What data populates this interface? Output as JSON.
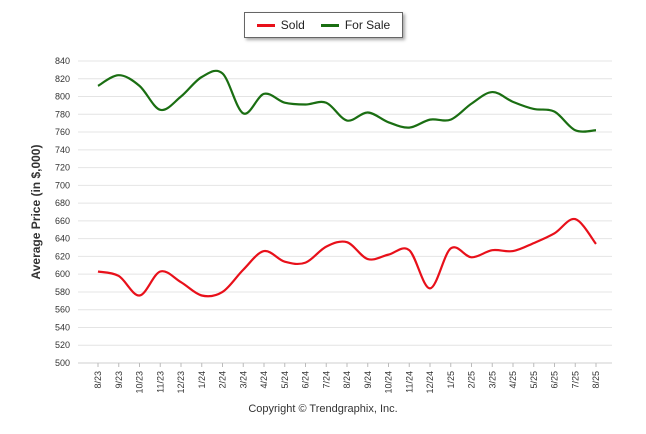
{
  "chart_data": {
    "type": "line",
    "ylabel": "Average Price (in $,000)",
    "xlabel": "",
    "ylim": [
      500,
      840
    ],
    "ytick_step": 20,
    "grid": true,
    "legend_position": "top-center",
    "categories": [
      "8/23",
      "9/23",
      "10/23",
      "11/23",
      "12/23",
      "1/24",
      "2/24",
      "3/24",
      "4/24",
      "5/24",
      "6/24",
      "7/24",
      "8/24",
      "9/24",
      "10/24",
      "11/24",
      "12/24",
      "1/25",
      "2/25",
      "3/25",
      "4/25",
      "5/25",
      "6/25",
      "7/25",
      "8/25"
    ],
    "series": [
      {
        "name": "Sold",
        "color": "#e8101a",
        "values": [
          603,
          598,
          576,
          603,
          591,
          576,
          580,
          605,
          626,
          614,
          613,
          631,
          636,
          617,
          622,
          627,
          584,
          629,
          619,
          627,
          626,
          635,
          646,
          662,
          634
        ]
      },
      {
        "name": "For Sale",
        "color": "#1a6e12",
        "values": [
          812,
          824,
          812,
          785,
          800,
          822,
          826,
          781,
          803,
          793,
          791,
          793,
          773,
          782,
          771,
          765,
          774,
          774,
          792,
          805,
          794,
          786,
          783,
          762,
          762
        ]
      }
    ]
  },
  "copyright": "Copyright © Trendgraphix, Inc."
}
